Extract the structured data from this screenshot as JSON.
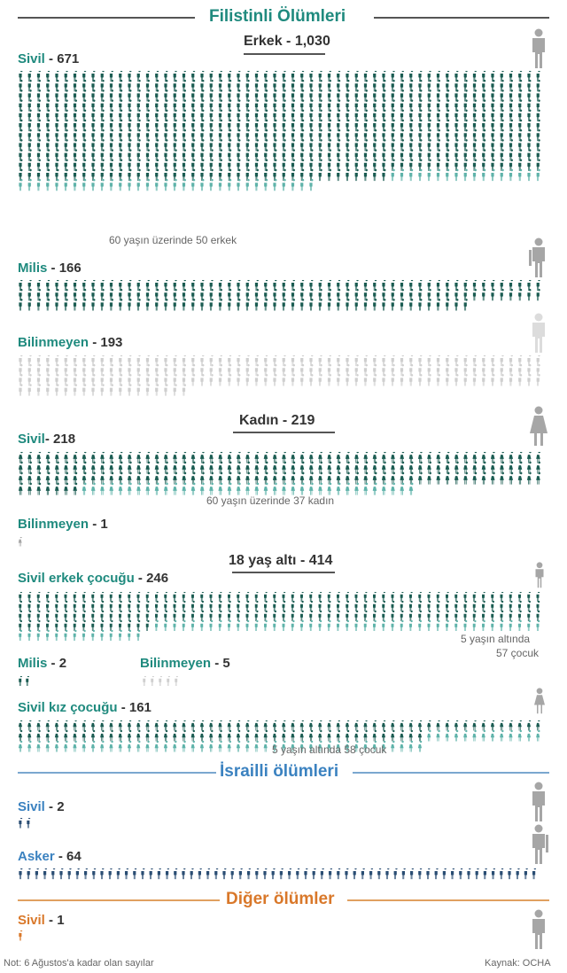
{
  "palestinian": {
    "title": "Filistinli Ölümleri",
    "men": {
      "heading": "Erkek - 1,030",
      "civil": {
        "label": "Sivil",
        "count": "671",
        "note": "60 yaşın üzerinde 50 erkek",
        "total": 671,
        "highlight": 50
      },
      "militant": {
        "label": "Milis",
        "count": "166",
        "total": 166
      },
      "unknown": {
        "label": "Bilinmeyen",
        "count": "193",
        "total": 193
      }
    },
    "women": {
      "heading": "Kadın  - 219",
      "civil": {
        "label": "Sivil",
        "count": "218",
        "note": "60 yaşın üzerinde 37 kadın",
        "total": 218,
        "highlight": 37
      },
      "unknown": {
        "label": "Bilinmeyen",
        "count": "1",
        "total": 1
      }
    },
    "children": {
      "heading": "18 yaş altı - 414",
      "boys": {
        "label": "Sivil erkek çocuğu",
        "count": "246",
        "note_line1": "5 yaşın altında",
        "note_line2": "57 çocuk",
        "total": 246,
        "highlight": 57
      },
      "militant": {
        "label": "Milis",
        "count": "2",
        "total": 2
      },
      "unknown": {
        "label": "Bilinmeyen",
        "count": "5",
        "total": 5
      },
      "girls": {
        "label": "Sivil kız çocuğu",
        "count": "161",
        "note": "5 yaşın altında 58 çocuk",
        "total": 161,
        "highlight": 58
      }
    }
  },
  "israeli": {
    "title": "İsrailli ölümleri",
    "civil": {
      "label": "Sivil",
      "count": "2",
      "total": 2
    },
    "soldier": {
      "label": "Asker",
      "count": "64",
      "total": 64
    }
  },
  "other": {
    "title": "Diğer ölümler",
    "civil": {
      "label": "Sivil",
      "count": "1",
      "total": 1
    }
  },
  "footer": {
    "note": "Not: 6 Ağustos'a kadar olan sayılar",
    "source": "Kaynak: OCHA"
  },
  "colors": {
    "teal_dark": "#1b5c52",
    "teal_light": "#5fb3aa",
    "gray_light": "#cfcfcf",
    "blue_dark": "#2a4d73",
    "blue_label": "#3b82c0",
    "orange": "#d9782a",
    "big_icon": "#a6a6a6"
  }
}
